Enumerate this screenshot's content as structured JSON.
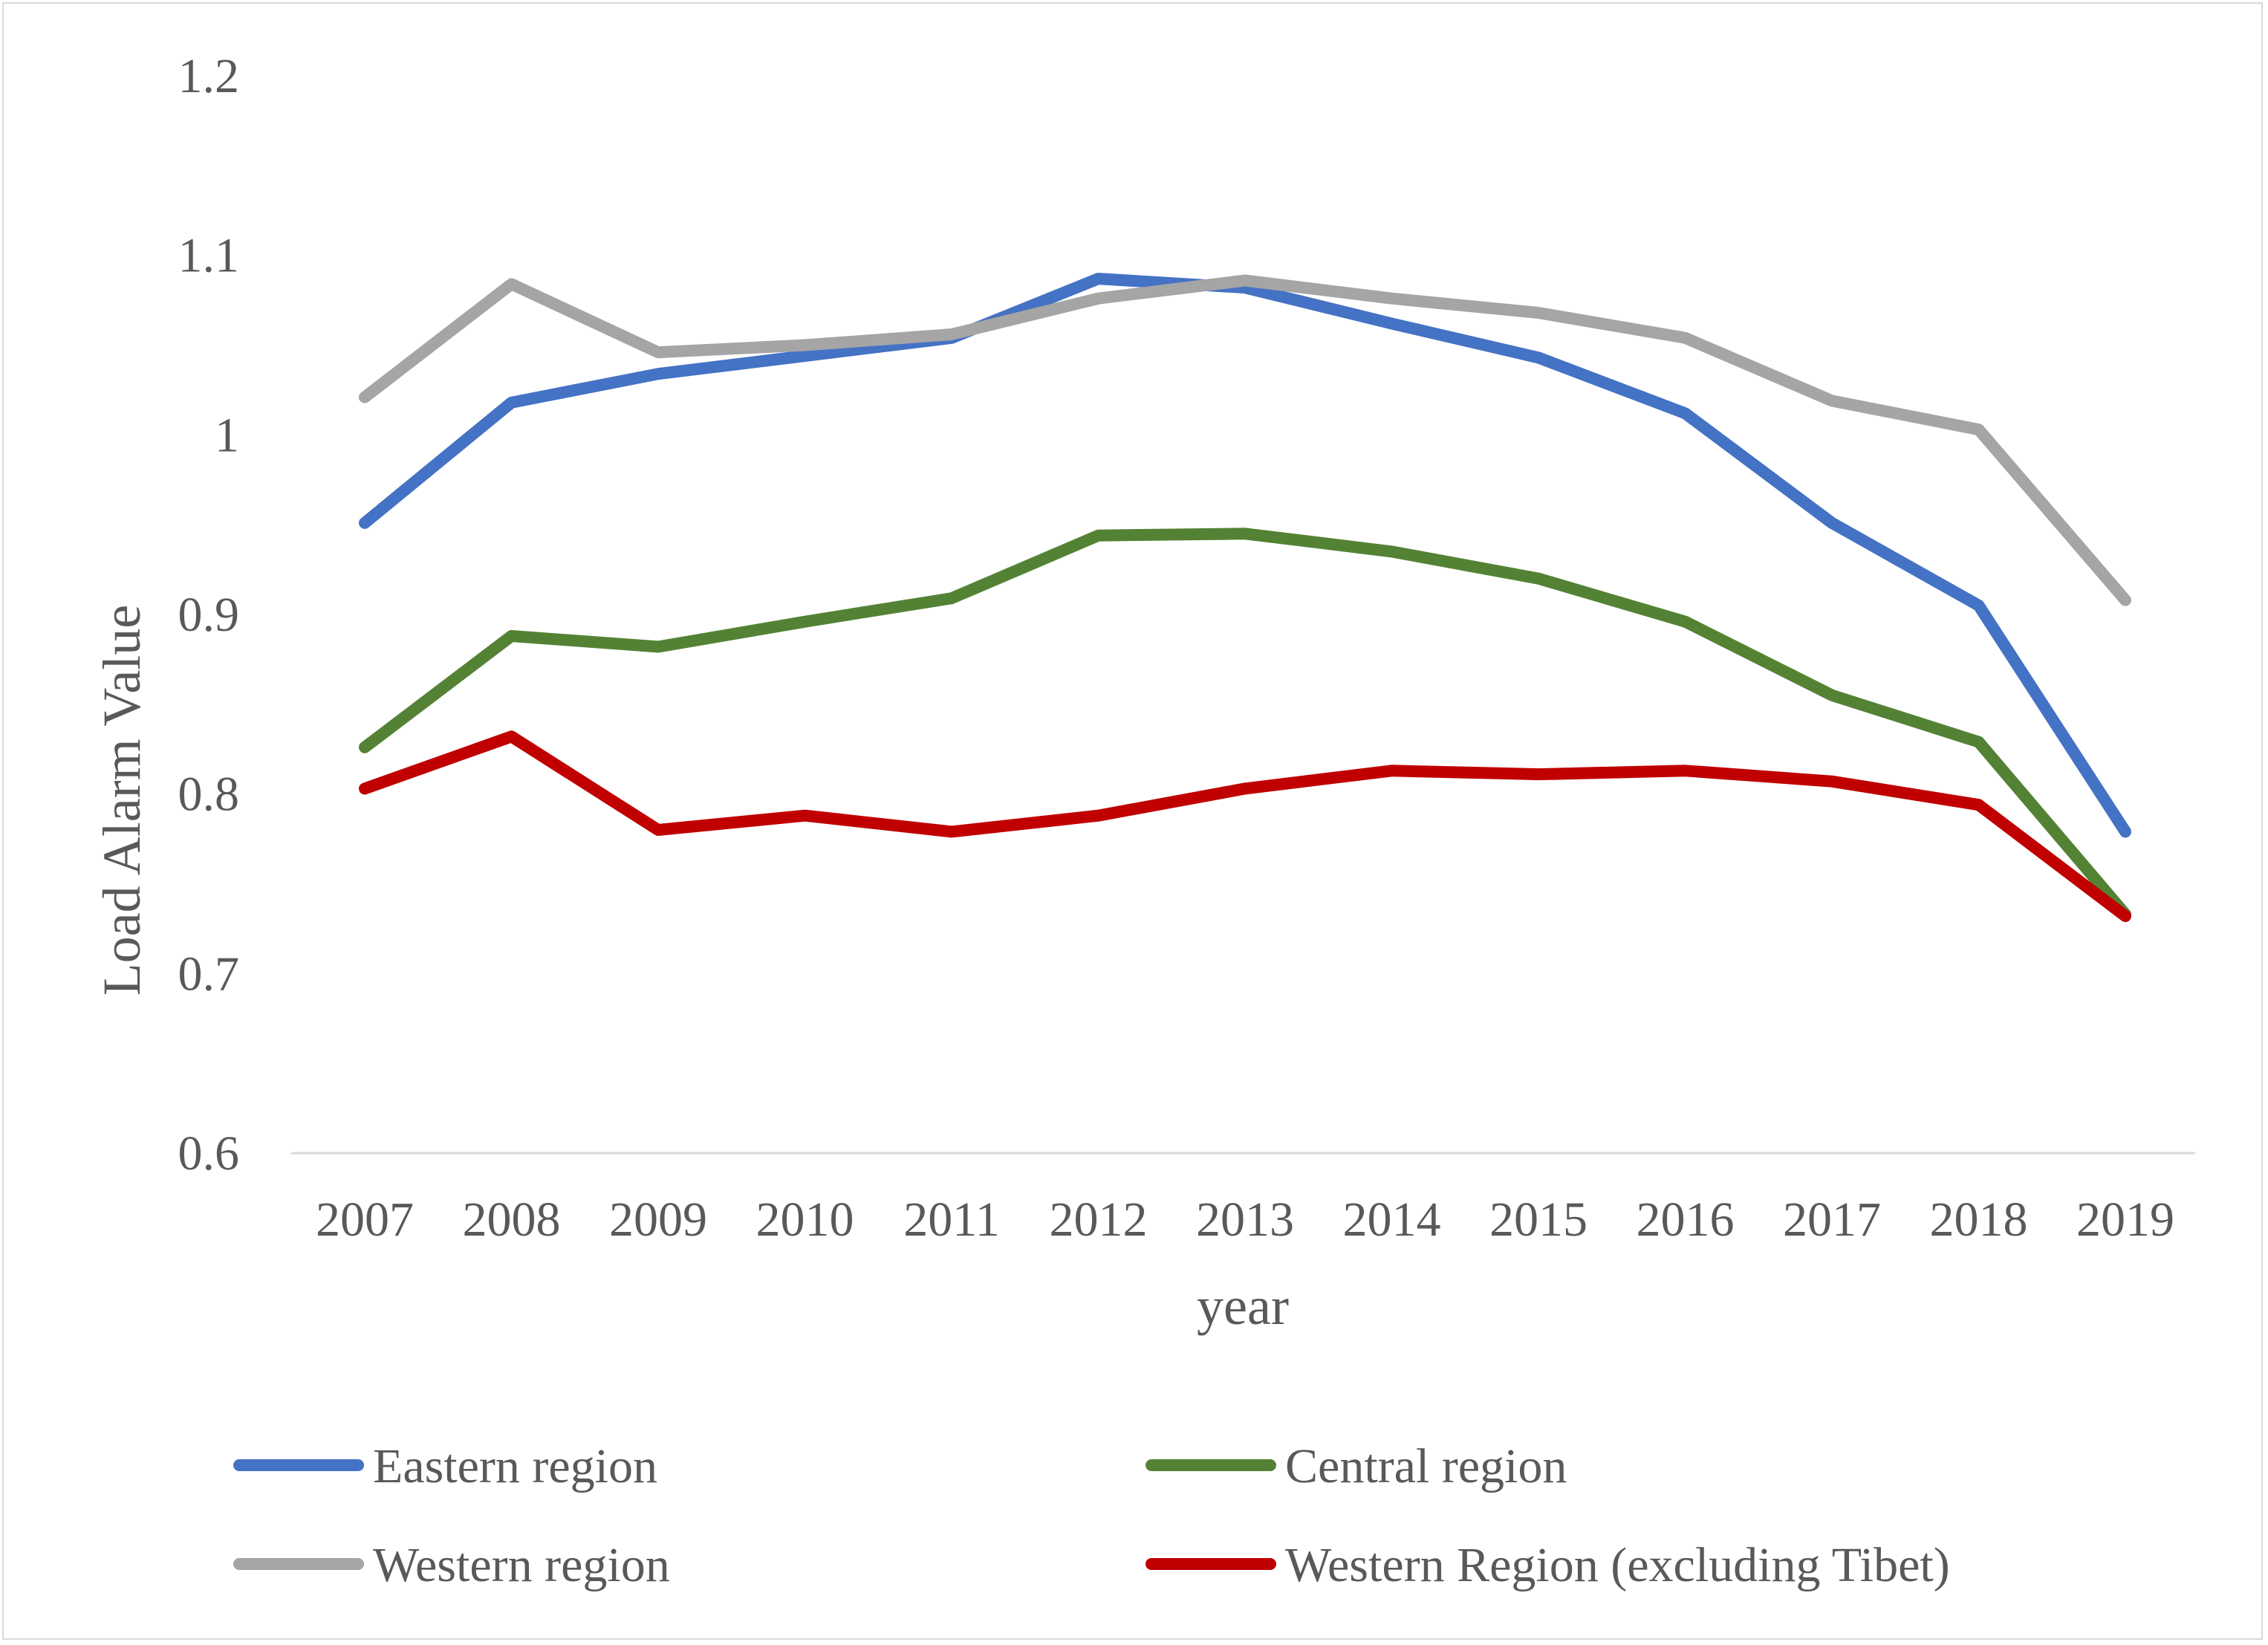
{
  "chart_data": {
    "type": "line",
    "title": "",
    "xlabel": "year",
    "ylabel": "Load Alarm Value",
    "ylim": [
      0.6,
      1.2
    ],
    "yticks": [
      "0.6",
      "0.7",
      "0.8",
      "0.9",
      "1",
      "1.1",
      "1.2"
    ],
    "grid": false,
    "legend_position": "bottom",
    "categories": [
      "2007",
      "2008",
      "2009",
      "2010",
      "2011",
      "2012",
      "2013",
      "2014",
      "2015",
      "2016",
      "2017",
      "2018",
      "2019"
    ],
    "series": [
      {
        "name": "Eastern region",
        "color": "#4472c4",
        "values": [
          0.951,
          1.018,
          1.034,
          1.044,
          1.054,
          1.087,
          1.082,
          1.062,
          1.043,
          1.012,
          0.951,
          0.905,
          0.779
        ]
      },
      {
        "name": "Central region",
        "color": "#548235",
        "values": [
          0.826,
          0.888,
          0.882,
          0.896,
          0.909,
          0.944,
          0.945,
          0.935,
          0.92,
          0.896,
          0.855,
          0.829,
          0.733
        ]
      },
      {
        "name": "Western region",
        "color": "#a5a5a5",
        "values": [
          1.021,
          1.084,
          1.046,
          1.05,
          1.056,
          1.076,
          1.086,
          1.076,
          1.068,
          1.054,
          1.019,
          1.003,
          0.908
        ]
      },
      {
        "name": "Western Region (excluding Tibet)",
        "color": "#c00000",
        "values": [
          0.803,
          0.832,
          0.78,
          0.788,
          0.779,
          0.788,
          0.803,
          0.813,
          0.811,
          0.813,
          0.807,
          0.794,
          0.732
        ]
      }
    ]
  }
}
